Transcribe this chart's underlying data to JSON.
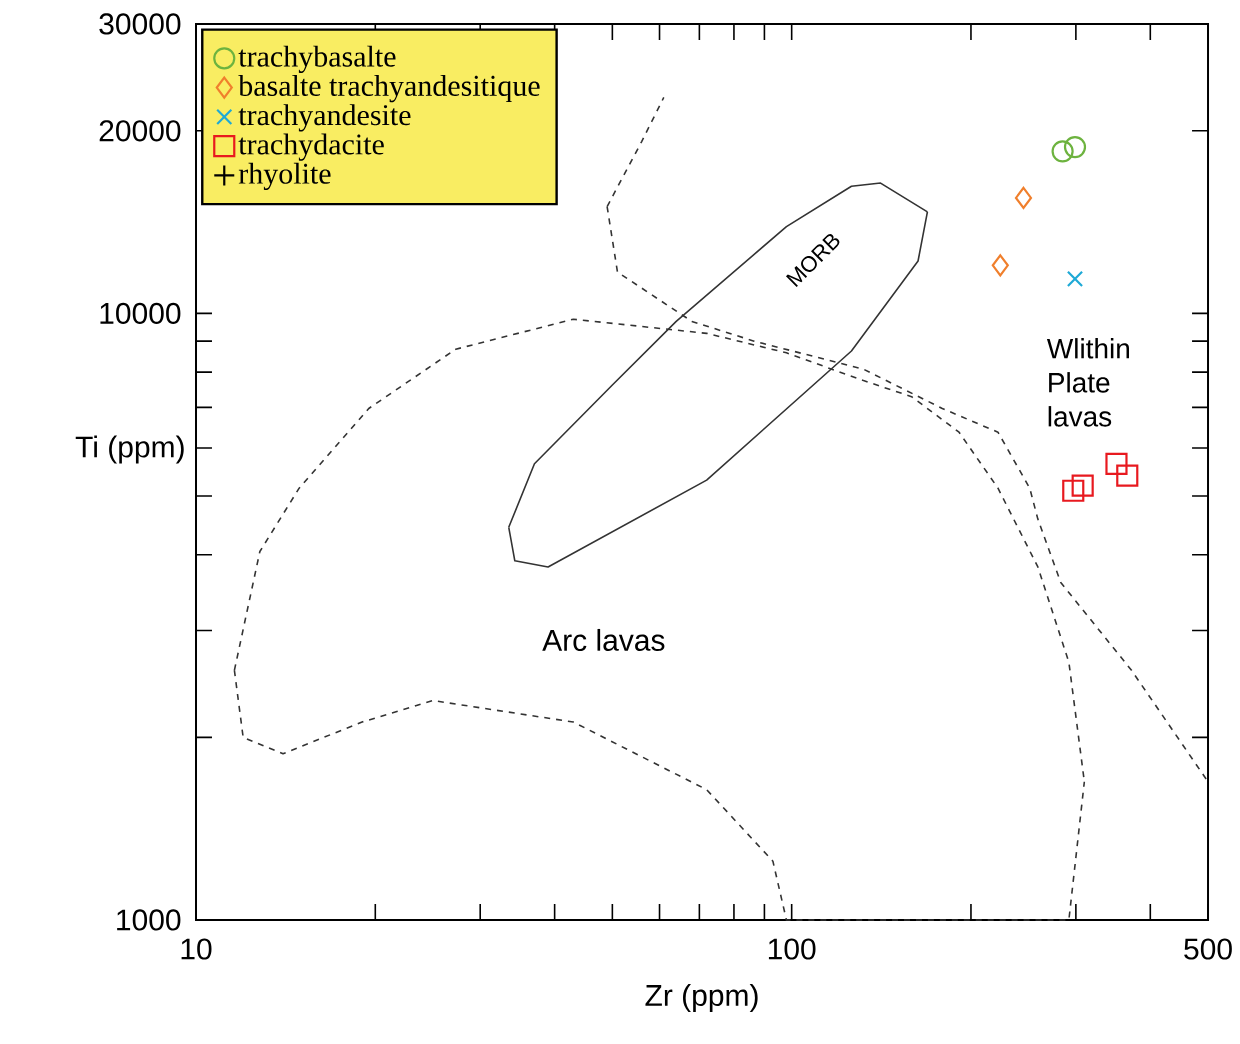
{
  "chart_data": {
    "type": "scatter",
    "log": "xy",
    "xlabel": "Zr (ppm)",
    "ylabel": "Ti (ppm)",
    "legend": "top left",
    "xlim": [
      10,
      500
    ],
    "ylim": [
      1000,
      30000
    ],
    "xticks": [
      10,
      {
        "value": 20,
        "label": null
      },
      {
        "value": 30,
        "label": null
      },
      {
        "value": 40,
        "label": null
      },
      {
        "value": 50,
        "label": null
      },
      {
        "value": 60,
        "label": null
      },
      {
        "value": 70,
        "label": null
      },
      {
        "value": 80,
        "label": null
      },
      {
        "value": 90,
        "label": null
      },
      100,
      {
        "value": 200,
        "label": null
      },
      {
        "value": 300,
        "label": null
      },
      {
        "value": 400,
        "label": null
      },
      500
    ],
    "yticks": [
      1000,
      {
        "value": 2000,
        "label": null
      },
      {
        "value": 3000,
        "label": null
      },
      {
        "value": 4000,
        "label": null
      },
      {
        "value": 5000,
        "label": null
      },
      {
        "value": 6000,
        "label": null
      },
      {
        "value": 7000,
        "label": null
      },
      {
        "value": 8000,
        "label": null
      },
      {
        "value": 9000,
        "label": null
      },
      10000,
      20000,
      30000
    ],
    "series": [
      {
        "name": "trachybasalte",
        "color": "#6db33f",
        "marker": "circle",
        "x": [
          285,
          299
        ],
        "values": [
          18500,
          18800
        ]
      },
      {
        "name": "basalte trachyandesitique",
        "color": "#f07f2c",
        "marker": "diamond",
        "x": [
          245,
          224
        ],
        "values": [
          15500,
          12000
        ]
      },
      {
        "name": "trachyandesite",
        "color": "#1ea9d6",
        "marker": "cross",
        "x": [
          299
        ],
        "values": [
          11400
        ]
      },
      {
        "name": "trachydacite",
        "color": "#e8191f",
        "marker": "square",
        "x": [
          297,
          308,
          351,
          366
        ],
        "values": [
          5100,
          5200,
          5650,
          5400
        ]
      },
      {
        "name": "rhyolite",
        "color": "#000000",
        "marker": "plus"
      },
      {
        "type": "line",
        "color": "#333333",
        "marker": "none",
        "line_style": "dashed",
        "x": [
          11.6,
          12,
          14,
          19,
          25,
          43,
          72,
          93,
          98,
          292,
          310,
          null,
          11.6,
          12.8,
          14.9,
          19.5,
          27.3,
          43,
          72,
          98,
          132,
          159,
          191,
          222,
          259,
          292,
          310
        ],
        "values": [
          2580,
          2000,
          1880,
          2120,
          2300,
          2120,
          1640,
          1250,
          1000,
          1000,
          1690,
          null,
          2580,
          4050,
          5150,
          6970,
          8730,
          9780,
          9270,
          8610,
          7750,
          7290,
          6370,
          5150,
          3820,
          2660,
          1690
        ]
      },
      {
        "type": "line",
        "color": "#333333",
        "marker": "none",
        "line_style": "dashed",
        "x": [
          49,
          51,
          62,
          68,
          86.5,
          132,
          179,
          222,
          251,
          259,
          283,
          372,
          500
        ],
        "values": [
          15000,
          11700,
          10300,
          9700,
          9000,
          8090,
          6970,
          6370,
          5150,
          4580,
          3600,
          2580,
          1690
        ]
      },
      {
        "type": "line",
        "color": "#333333",
        "marker": "none",
        "line_style": "dashed",
        "x": [
          49,
          56,
          61
        ],
        "values": [
          15000,
          19200,
          22700
        ]
      },
      {
        "type": "line",
        "color": "#333333",
        "marker": "none",
        "line_style": "solid",
        "x": [
          33.5,
          34.3,
          39,
          72,
          126,
          163,
          169
        ],
        "values": [
          4440,
          3910,
          3820,
          5310,
          8670,
          12200,
          14700
        ]
      },
      {
        "type": "line",
        "color": "#333333",
        "marker": "none",
        "line_style": "solid",
        "x": [
          33.5,
          37,
          50,
          64,
          98,
          126,
          141,
          169
        ],
        "values": [
          4440,
          5650,
          7620,
          9700,
          13900,
          16200,
          16400,
          14700
        ]
      }
    ],
    "annotations": [
      "MORB",
      "Arc lavas",
      "Wlithin Plate lavas"
    ]
  }
}
